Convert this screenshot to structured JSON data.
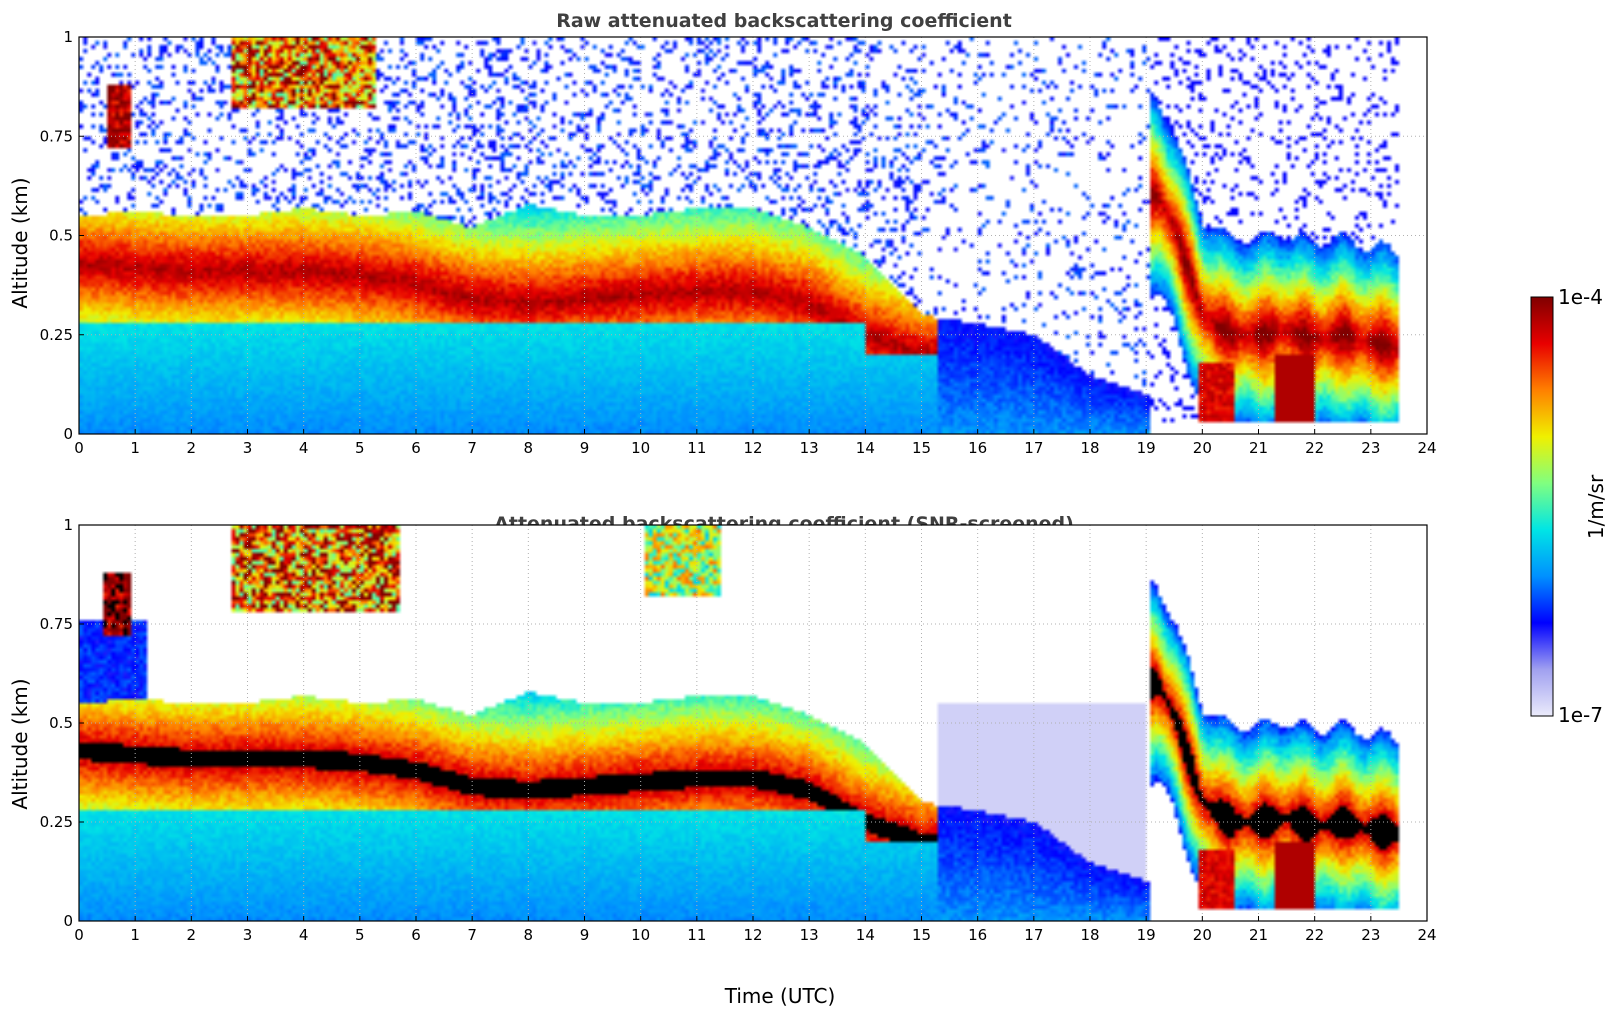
{
  "chart_data": [
    {
      "type": "heatmap",
      "title": "Raw attenuated backscattering coefficient",
      "xlabel": "",
      "ylabel": "Altitude (km)",
      "xlim": [
        0,
        24
      ],
      "ylim": [
        0,
        1
      ],
      "x_ticks": [
        "0",
        "1",
        "2",
        "3",
        "4",
        "5",
        "6",
        "7",
        "8",
        "9",
        "10",
        "11",
        "12",
        "13",
        "14",
        "15",
        "16",
        "17",
        "18",
        "19",
        "20",
        "21",
        "22",
        "23",
        "24"
      ],
      "y_ticks": [
        "0",
        "0.25",
        "0.5",
        "0.75",
        "1"
      ],
      "grid": true,
      "screened": false,
      "data_coverage_hours": [
        0,
        23.5
      ],
      "layer_top_km": [
        [
          0,
          0.55
        ],
        [
          1,
          0.56
        ],
        [
          2,
          0.55
        ],
        [
          3,
          0.55
        ],
        [
          4,
          0.57
        ],
        [
          5,
          0.55
        ],
        [
          6,
          0.56
        ],
        [
          7,
          0.52
        ],
        [
          8,
          0.58
        ],
        [
          9,
          0.55
        ],
        [
          10,
          0.55
        ],
        [
          11,
          0.57
        ],
        [
          12,
          0.57
        ],
        [
          13,
          0.52
        ],
        [
          14,
          0.45
        ],
        [
          15,
          0.3
        ],
        [
          16,
          0.28
        ],
        [
          17,
          0.25
        ],
        [
          18,
          0.15
        ],
        [
          19,
          0.1
        ]
      ],
      "layer_core_km": [
        [
          0,
          0.43
        ],
        [
          1,
          0.42
        ],
        [
          2,
          0.41
        ],
        [
          3,
          0.41
        ],
        [
          4,
          0.41
        ],
        [
          5,
          0.4
        ],
        [
          6,
          0.38
        ],
        [
          7,
          0.34
        ],
        [
          8,
          0.33
        ],
        [
          9,
          0.34
        ],
        [
          10,
          0.35
        ],
        [
          11,
          0.36
        ],
        [
          12,
          0.36
        ],
        [
          13,
          0.33
        ],
        [
          14,
          0.25
        ],
        [
          15,
          0.2
        ]
      ],
      "evening_layer_km": [
        [
          19.2,
          0.6
        ],
        [
          19.5,
          0.52
        ],
        [
          20,
          0.3
        ],
        [
          20.5,
          0.25
        ],
        [
          21,
          0.25
        ],
        [
          21.5,
          0.26
        ],
        [
          22,
          0.24
        ],
        [
          22.5,
          0.25
        ],
        [
          23,
          0.23
        ],
        [
          23.5,
          0.22
        ]
      ]
    },
    {
      "type": "heatmap",
      "title": "Attenuated backscattering coefficient (SNR-screened)",
      "xlabel": "Time (UTC)",
      "ylabel": "Altitude (km)",
      "xlim": [
        0,
        24
      ],
      "ylim": [
        0,
        1
      ],
      "x_ticks": [
        "0",
        "1",
        "2",
        "3",
        "4",
        "5",
        "6",
        "7",
        "8",
        "9",
        "10",
        "11",
        "12",
        "13",
        "14",
        "15",
        "16",
        "17",
        "18",
        "19",
        "20",
        "21",
        "22",
        "23",
        "24"
      ],
      "y_ticks": [
        "0",
        "0.25",
        "0.5",
        "0.75",
        "1"
      ],
      "grid": true,
      "screened": true,
      "data_coverage_hours": [
        0,
        23.5
      ]
    }
  ],
  "colorbar": {
    "label": "1/m/sr",
    "max_label": "1e-4",
    "min_label": "1e-7",
    "scale": "log",
    "range": [
      1e-07,
      0.0001
    ],
    "colormap_stops": [
      "#ebebfb",
      "#a0a0f0",
      "#0000ff",
      "#0090ff",
      "#00e5e5",
      "#80ff80",
      "#f0f000",
      "#ff8000",
      "#e80000",
      "#800000"
    ]
  }
}
